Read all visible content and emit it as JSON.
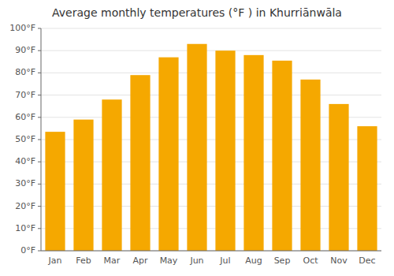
{
  "chart_data": {
    "type": "bar",
    "title": "Average monthly temperatures (°F ) in Khurriānwāla",
    "categories": [
      "Jan",
      "Feb",
      "Mar",
      "Apr",
      "May",
      "Jun",
      "Jul",
      "Aug",
      "Sep",
      "Oct",
      "Nov",
      "Dec"
    ],
    "values": [
      53.5,
      59,
      68,
      79,
      87,
      93,
      90,
      88,
      85.5,
      77,
      66,
      56
    ],
    "color": "#F5A800",
    "ylim": [
      0,
      100
    ],
    "yticks": [
      {
        "value": 0,
        "label": "0°F"
      },
      {
        "value": 10,
        "label": "10°F"
      },
      {
        "value": 20,
        "label": "20°F"
      },
      {
        "value": 30,
        "label": "30°F"
      },
      {
        "value": 40,
        "label": "40°F"
      },
      {
        "value": 50,
        "label": "50°F"
      },
      {
        "value": 60,
        "label": "60°F"
      },
      {
        "value": 70,
        "label": "70°F"
      },
      {
        "value": 80,
        "label": "80°F"
      },
      {
        "value": 90,
        "label": "90°F"
      },
      {
        "value": 100,
        "label": "100°F"
      }
    ],
    "grid": true
  }
}
